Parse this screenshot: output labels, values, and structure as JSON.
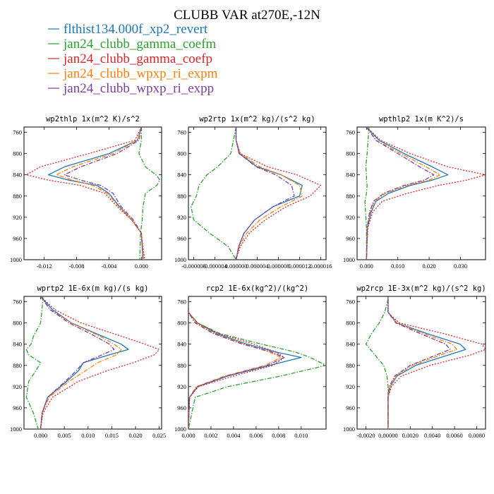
{
  "figure": {
    "title": "CLUBB VAR at270E,-12N"
  },
  "legend": [
    {
      "label": "flthist134.000f_xp2_revert",
      "color": "#1f77b4",
      "dash": "solid"
    },
    {
      "label": "jan24_clubb_gamma_coefm",
      "color": "#2ca02c",
      "dash": "dashdot"
    },
    {
      "label": "jan24_clubb_gamma_coefp",
      "color": "#d62728",
      "dash": "dot"
    },
    {
      "label": "jan24_clubb_wpxp_ri_expm",
      "color": "#ff7f0e",
      "dash": "dashdot"
    },
    {
      "label": "jan24_clubb_wpxp_ri_expp",
      "color": "#7b3f9e",
      "dash": "dashdot"
    }
  ],
  "chart_data": [
    {
      "type": "line",
      "title": "wp2thlp  1x(m^2 K)/s^2",
      "xlim": [
        -0.0145,
        0.0025
      ],
      "ylim": [
        750,
        1000
      ],
      "y_reversed": true,
      "xticks": [
        -0.012,
        -0.008,
        -0.004,
        0.0
      ],
      "xtick_labels": [
        "-0.012",
        "-0.008",
        "-0.004",
        "0.000"
      ],
      "yticks": [
        760,
        800,
        840,
        880,
        920,
        960,
        1000
      ],
      "y": [
        750,
        775,
        800,
        825,
        840,
        850,
        860,
        875,
        900,
        925,
        950,
        1000
      ],
      "series": [
        {
          "name": "flthist134.000f_xp2_revert",
          "values": [
            0.0,
            -0.0005,
            -0.004,
            -0.0095,
            -0.0115,
            -0.009,
            -0.0055,
            -0.004,
            -0.0027,
            -0.0012,
            0.0,
            0.0002
          ]
        },
        {
          "name": "jan24_clubb_gamma_coefm",
          "values": [
            0.0,
            0.0,
            -0.0003,
            0.0005,
            0.0018,
            0.0023,
            0.0019,
            0.0005,
            0.0002,
            0.0001,
            -0.0001,
            -0.0002
          ]
        },
        {
          "name": "jan24_clubb_gamma_coefp",
          "values": [
            0.0,
            -0.0008,
            -0.0065,
            -0.0125,
            -0.0142,
            -0.0115,
            -0.0075,
            -0.0045,
            -0.003,
            -0.0012,
            0.0,
            0.0004
          ]
        },
        {
          "name": "jan24_clubb_wpxp_ri_expm",
          "values": [
            0.0,
            -0.0005,
            -0.0035,
            -0.0085,
            -0.0105,
            -0.0085,
            -0.006,
            -0.0042,
            -0.0028,
            -0.0012,
            0.0,
            0.0003
          ]
        },
        {
          "name": "jan24_clubb_wpxp_ri_expp",
          "values": [
            0.0,
            -0.0003,
            -0.003,
            -0.0075,
            -0.0095,
            -0.0075,
            -0.005,
            -0.0035,
            -0.0025,
            -0.001,
            0.0,
            0.0002
          ]
        }
      ]
    },
    {
      "type": "line",
      "title": "wp2rtp  1x(m^2 kg)/(s^2 kg)",
      "xlim": [
        -9e-06,
        1.7e-05
      ],
      "ylim": [
        750,
        1000
      ],
      "y_reversed": true,
      "xticks": [
        -8e-06,
        -4e-06,
        0.0,
        4e-06,
        8e-06,
        1.2e-05,
        1.6e-05
      ],
      "xtick_labels": [
        "-0.000008",
        "-0.000004",
        "0.000000",
        "0.000004",
        "0.000008",
        "0.000012",
        "0.000016"
      ],
      "yticks": [
        760,
        800,
        840,
        880,
        920,
        960,
        1000
      ],
      "y": [
        750,
        775,
        800,
        825,
        840,
        860,
        880,
        900,
        925,
        950,
        975,
        1000
      ],
      "series": [
        {
          "name": "flthist134.000f_xp2_revert",
          "values": [
            0.0,
            0.0,
            6e-07,
            4e-06,
            8.5e-06,
            1.25e-05,
            1.2e-05,
            7e-06,
            3.5e-06,
            1.5e-06,
            5e-07,
            0.0
          ]
        },
        {
          "name": "jan24_clubb_gamma_coefm",
          "values": [
            0.0,
            -5e-07,
            -1e-06,
            -3.5e-06,
            -5.5e-06,
            -7e-06,
            -7.5e-06,
            -8.5e-06,
            -8e-06,
            -5e-06,
            -1.5e-06,
            0.0
          ]
        },
        {
          "name": "jan24_clubb_gamma_coefp",
          "values": [
            0.0,
            0.0,
            8e-07,
            6e-06,
            1.15e-05,
            1.6e-05,
            1.4e-05,
            9.5e-06,
            5.5e-06,
            2.5e-06,
            8e-07,
            0.0
          ]
        },
        {
          "name": "jan24_clubb_wpxp_ri_expm",
          "values": [
            0.0,
            0.0,
            8e-07,
            4.5e-06,
            8.5e-06,
            1.2e-05,
            1.25e-05,
            8.5e-06,
            4.5e-06,
            2e-06,
            6e-07,
            0.0
          ]
        },
        {
          "name": "jan24_clubb_wpxp_ri_expp",
          "values": [
            0.0,
            0.0,
            6e-07,
            3.8e-06,
            7.5e-06,
            1.05e-05,
            1.1e-05,
            7e-06,
            3.5e-06,
            1.5e-06,
            5e-07,
            0.0
          ]
        }
      ]
    },
    {
      "type": "line",
      "title": "wpthlp2  1x(m K^2)/s",
      "xlim": [
        -0.003,
        0.038
      ],
      "ylim": [
        750,
        1000
      ],
      "y_reversed": true,
      "xticks": [
        0.0,
        0.01,
        0.02,
        0.03
      ],
      "xtick_labels": [
        "0.000",
        "0.010",
        "0.020",
        "0.030"
      ],
      "yticks": [
        760,
        800,
        840,
        880,
        920,
        960,
        1000
      ],
      "y": [
        750,
        775,
        800,
        825,
        840,
        850,
        860,
        875,
        890,
        910,
        940,
        1000
      ],
      "series": [
        {
          "name": "flthist134.000f_xp2_revert",
          "values": [
            0.0,
            0.004,
            0.012,
            0.021,
            0.026,
            0.021,
            0.014,
            0.007,
            0.003,
            0.0015,
            0.0003,
            0.0
          ]
        },
        {
          "name": "jan24_clubb_gamma_coefm",
          "values": [
            0.0008,
            0.0005,
            0.0002,
            -0.0002,
            0.0,
            0.0,
            0.0002,
            0.0,
            -0.0005,
            -0.0003,
            0.0,
            0.0
          ]
        },
        {
          "name": "jan24_clubb_gamma_coefp",
          "values": [
            0.0,
            0.0045,
            0.014,
            0.026,
            0.038,
            0.032,
            0.023,
            0.013,
            0.005,
            0.002,
            0.0004,
            0.0
          ]
        },
        {
          "name": "jan24_clubb_wpxp_ri_expm",
          "values": [
            0.0,
            0.003,
            0.011,
            0.019,
            0.0235,
            0.02,
            0.013,
            0.006,
            0.0025,
            0.0012,
            0.0002,
            0.0
          ]
        },
        {
          "name": "jan24_clubb_wpxp_ri_expp",
          "values": [
            0.0,
            0.003,
            0.01,
            0.017,
            0.0215,
            0.0185,
            0.012,
            0.0055,
            0.0022,
            0.001,
            0.0002,
            0.0
          ]
        }
      ]
    },
    {
      "type": "line",
      "title": "wprtp2  1E-6x(m kg)/(s kg)",
      "xlim": [
        -0.0035,
        0.0255
      ],
      "ylim": [
        750,
        1000
      ],
      "y_reversed": true,
      "xticks": [
        0.0,
        0.005,
        0.01,
        0.015,
        0.02,
        0.025
      ],
      "xtick_labels": [
        "0.000",
        "0.005",
        "0.010",
        "0.015",
        "0.020",
        "0.025"
      ],
      "yticks": [
        760,
        800,
        840,
        880,
        920,
        960,
        1000
      ],
      "y": [
        750,
        775,
        800,
        825,
        840,
        850,
        860,
        875,
        890,
        910,
        940,
        970,
        1000
      ],
      "series": [
        {
          "name": "flthist134.000f_xp2_revert",
          "values": [
            0.0,
            0.0025,
            0.0065,
            0.013,
            0.017,
            0.0185,
            0.0145,
            0.009,
            0.008,
            0.0055,
            0.0015,
            0.0003,
            0.0
          ]
        },
        {
          "name": "jan24_clubb_gamma_coefm",
          "values": [
            0.0005,
            0.0003,
            0.0,
            -0.0015,
            -0.002,
            -0.003,
            -0.0025,
            0.0,
            -0.001,
            -0.0025,
            -0.003,
            -0.0015,
            -0.0005
          ]
        },
        {
          "name": "jan24_clubb_gamma_coefp",
          "values": [
            0.0,
            0.003,
            0.0085,
            0.017,
            0.022,
            0.025,
            0.024,
            0.0195,
            0.014,
            0.008,
            0.0025,
            0.0005,
            0.0
          ]
        },
        {
          "name": "jan24_clubb_wpxp_ri_expm",
          "values": [
            0.0,
            0.002,
            0.0065,
            0.0125,
            0.0155,
            0.017,
            0.016,
            0.012,
            0.0095,
            0.006,
            0.0018,
            0.0003,
            0.0
          ]
        },
        {
          "name": "jan24_clubb_wpxp_ri_expp",
          "values": [
            0.0,
            0.002,
            0.006,
            0.0115,
            0.0145,
            0.0155,
            0.013,
            0.009,
            0.0075,
            0.0052,
            0.0015,
            0.0003,
            0.0
          ]
        }
      ]
    },
    {
      "type": "line",
      "title": "rcp2  1E-6x(kg^2)/(kg^2)",
      "xlim": [
        0.0,
        0.0122
      ],
      "ylim": [
        750,
        1000
      ],
      "y_reversed": true,
      "xticks": [
        0.0,
        0.002,
        0.004,
        0.006,
        0.008,
        0.01
      ],
      "xtick_labels": [
        "0.000",
        "0.002",
        "0.004",
        "0.006",
        "0.008",
        "0.010"
      ],
      "yticks": [
        760,
        800,
        840,
        880,
        920,
        960,
        1000
      ],
      "y": [
        755,
        780,
        800,
        820,
        840,
        855,
        865,
        880,
        900,
        920,
        940,
        1000
      ],
      "series": [
        {
          "name": "flthist134.000f_xp2_revert",
          "values": [
            0.0,
            0.0,
            0.0008,
            0.0025,
            0.0052,
            0.0078,
            0.01,
            0.0072,
            0.0035,
            0.0008,
            0.0001,
            0.0
          ]
        },
        {
          "name": "jan24_clubb_gamma_coefm",
          "values": [
            0.0,
            0.0,
            0.0008,
            0.0028,
            0.0065,
            0.0095,
            0.0108,
            0.0122,
            0.0082,
            0.0035,
            0.0006,
            0.0
          ]
        },
        {
          "name": "jan24_clubb_gamma_coefp",
          "values": [
            0.0,
            0.0,
            0.0008,
            0.0027,
            0.0058,
            0.0078,
            0.0085,
            0.0075,
            0.004,
            0.0009,
            0.0001,
            0.0
          ]
        },
        {
          "name": "jan24_clubb_wpxp_ri_expm",
          "values": [
            0.0,
            0.0,
            0.0007,
            0.0023,
            0.005,
            0.0072,
            0.0082,
            0.0068,
            0.0032,
            0.0007,
            0.0001,
            0.0
          ]
        },
        {
          "name": "jan24_clubb_wpxp_ri_expp",
          "values": [
            0.0,
            0.0,
            0.0006,
            0.0022,
            0.0048,
            0.0074,
            0.0085,
            0.007,
            0.0034,
            0.0008,
            0.0001,
            0.0
          ]
        }
      ]
    },
    {
      "type": "line",
      "title": "wp2rcp  1E-3x(m^2 kg)/(s^2 kg)",
      "xlim": [
        -0.0028,
        0.0088
      ],
      "ylim": [
        750,
        1000
      ],
      "y_reversed": true,
      "xticks": [
        -0.002,
        0.0,
        0.002,
        0.004,
        0.006,
        0.008
      ],
      "xtick_labels": [
        "-0.0020",
        "0.00000",
        "0.0020",
        "0.0040",
        "0.0060",
        "0.0080"
      ],
      "yticks": [
        760,
        800,
        840,
        880,
        920,
        960,
        1000
      ],
      "y": [
        755,
        780,
        800,
        820,
        840,
        850,
        860,
        880,
        900,
        920,
        940,
        1000
      ],
      "series": [
        {
          "name": "flthist134.000f_xp2_revert",
          "values": [
            0.0,
            0.0,
            0.0008,
            0.0035,
            0.0065,
            0.007,
            0.0055,
            0.0025,
            0.0008,
            0.0002,
            0.0,
            0.0
          ]
        },
        {
          "name": "jan24_clubb_gamma_coefm",
          "values": [
            0.0,
            -0.0003,
            -0.0008,
            -0.0015,
            -0.002,
            -0.0016,
            -0.0012,
            -0.0004,
            -0.0001,
            0.0,
            0.0,
            0.0
          ]
        },
        {
          "name": "jan24_clubb_gamma_coefp",
          "values": [
            0.0,
            0.0,
            0.001,
            0.005,
            0.0085,
            0.0088,
            0.0075,
            0.0038,
            0.0012,
            0.0003,
            0.0,
            0.0
          ]
        },
        {
          "name": "jan24_clubb_wpxp_ri_expm",
          "values": [
            0.0,
            0.0,
            0.0008,
            0.0032,
            0.0058,
            0.0062,
            0.0048,
            0.0022,
            0.0007,
            0.0002,
            0.0,
            0.0
          ]
        },
        {
          "name": "jan24_clubb_wpxp_ri_expp",
          "values": [
            0.0,
            0.0,
            0.0007,
            0.0029,
            0.0052,
            0.0056,
            0.0044,
            0.002,
            0.0006,
            0.0001,
            0.0,
            0.0
          ]
        }
      ]
    }
  ]
}
